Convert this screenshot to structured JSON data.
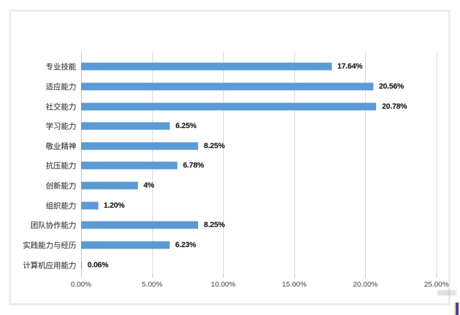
{
  "chart_data": {
    "type": "bar",
    "orientation": "horizontal",
    "title": "",
    "xlabel": "",
    "ylabel": "",
    "grid": true,
    "legend": false,
    "categories": [
      "专业技能",
      "适应能力",
      "社交能力",
      "学习能力",
      "敬业精神",
      "抗压能力",
      "创新能力",
      "组织能力",
      "团队协作能力",
      "实践能力与经历",
      "计算机应用能力"
    ],
    "values": [
      17.64,
      20.56,
      20.78,
      6.25,
      8.25,
      6.78,
      4,
      1.2,
      8.25,
      6.23,
      0.06
    ],
    "value_labels": [
      "17.64%",
      "20.56%",
      "20.78%",
      "6.25%",
      "8.25%",
      "6.78%",
      "4%",
      "1.20%",
      "8.25%",
      "6.23%",
      "0.06%"
    ],
    "x_tick_labels": [
      "0.00%",
      "5.00%",
      "10.00%",
      "15.00%",
      "20.00%",
      "25.00%"
    ],
    "xlim": [
      0,
      25
    ],
    "bar_color": "#5b9bd5",
    "gridline_color": "#d9d9d9",
    "frame_border_color": "#ececec",
    "caret_color": "#50408e"
  }
}
